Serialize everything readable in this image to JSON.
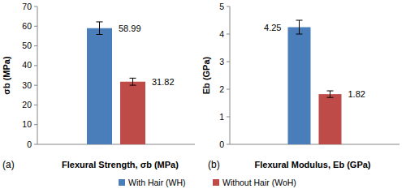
{
  "chart_data": [
    {
      "type": "bar",
      "annotations": [
        "(a)"
      ],
      "xlabel": "Flexural Strength, σb (MPa)",
      "ylabel": "σb (MPa)",
      "categories": [
        null
      ],
      "series": [
        {
          "name": "With Hair (WH)",
          "color": "#4a7ebb",
          "values": [
            58.99
          ],
          "errors": [
            3.2
          ]
        },
        {
          "name": "Without Hair (WoH)",
          "color": "#be4b48",
          "values": [
            31.82
          ],
          "errors": [
            1.8
          ]
        }
      ],
      "ylim": [
        0,
        70
      ],
      "yticks": [
        0,
        10,
        20,
        30,
        40,
        50,
        60,
        70
      ],
      "grid": false,
      "data_labels": true,
      "legend": "bottom"
    },
    {
      "type": "bar",
      "annotations": [
        "(b)"
      ],
      "xlabel": "Flexural Modulus, Eb (GPa)",
      "ylabel": "Eb (GPa)",
      "categories": [
        null
      ],
      "series": [
        {
          "color": "#4a7ebb",
          "values": [
            4.25
          ],
          "errors": [
            0.25
          ]
        },
        {
          "color": "#be4b48",
          "values": [
            1.82
          ],
          "errors": [
            0.12
          ]
        }
      ],
      "ylim": [
        0,
        5
      ],
      "yticks": [
        0,
        1,
        2,
        3,
        4,
        5
      ],
      "grid": false,
      "data_labels": true
    }
  ]
}
